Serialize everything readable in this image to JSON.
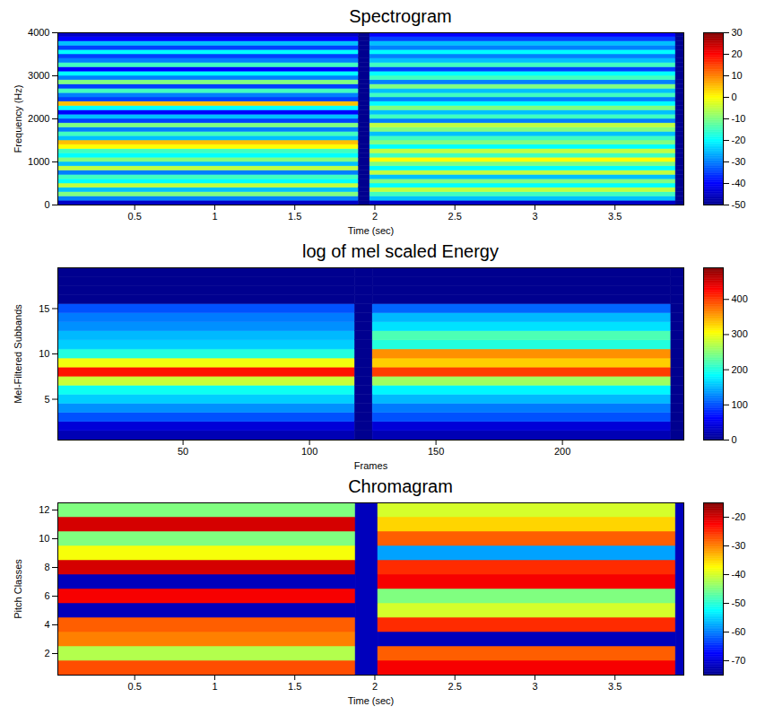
{
  "chart_data": [
    {
      "type": "heatmap",
      "title": "Spectrogram",
      "xlabel": "Time (sec)",
      "ylabel": "Frequency (Hz)",
      "xlim": [
        0.02,
        3.93
      ],
      "xticks": [
        0.5,
        1,
        1.5,
        2,
        2.5,
        3,
        3.5
      ],
      "ylim": [
        0,
        4000
      ],
      "yticks": [
        0,
        1000,
        2000,
        3000,
        4000
      ],
      "xbins": [
        0.02,
        1.9,
        1.97,
        3.88,
        3.93
      ],
      "ybins": [
        0,
        100,
        200,
        300,
        400,
        500,
        600,
        700,
        800,
        900,
        1000,
        1100,
        1200,
        1300,
        1400,
        1500,
        1600,
        1700,
        1800,
        1900,
        2000,
        2100,
        2200,
        2300,
        2400,
        2500,
        2600,
        2700,
        2800,
        2900,
        3000,
        3100,
        3200,
        3300,
        3400,
        3500,
        3600,
        3700,
        3800,
        3900,
        4000
      ],
      "z": [
        [
          -45,
          -50,
          -45,
          -50
        ],
        [
          -30,
          -50,
          -25,
          -50
        ],
        [
          -10,
          -50,
          -15,
          -50
        ],
        [
          -25,
          -50,
          -5,
          -50
        ],
        [
          -5,
          -50,
          -20,
          -50
        ],
        [
          -20,
          -50,
          -10,
          -50
        ],
        [
          -15,
          -50,
          -25,
          -50
        ],
        [
          -30,
          -50,
          -5,
          -50
        ],
        [
          -5,
          -50,
          -20,
          -50
        ],
        [
          -25,
          -50,
          -10,
          -50
        ],
        [
          -10,
          -50,
          0,
          -50
        ],
        [
          -20,
          -50,
          -15,
          -50
        ],
        [
          -15,
          -50,
          -5,
          -50
        ],
        [
          0,
          -50,
          -20,
          -50
        ],
        [
          5,
          -50,
          -10,
          -50
        ],
        [
          -25,
          -50,
          -15,
          -50
        ],
        [
          -15,
          -50,
          -25,
          -50
        ],
        [
          -30,
          -50,
          -10,
          -50
        ],
        [
          -10,
          -50,
          -5,
          -50
        ],
        [
          -35,
          -50,
          -30,
          -50
        ],
        [
          -25,
          -50,
          -15,
          -50
        ],
        [
          -40,
          -50,
          -25,
          -50
        ],
        [
          -20,
          -50,
          -10,
          -50
        ],
        [
          5,
          -50,
          -20,
          -50
        ],
        [
          -35,
          -50,
          -30,
          -50
        ],
        [
          -30,
          -50,
          -15,
          -50
        ],
        [
          -15,
          -50,
          -25,
          -50
        ],
        [
          -35,
          -50,
          -10,
          -50
        ],
        [
          -10,
          -50,
          -30,
          -50
        ],
        [
          -30,
          -50,
          -15,
          -50
        ],
        [
          -20,
          -50,
          -20,
          -50
        ],
        [
          -40,
          -50,
          -35,
          -50
        ],
        [
          -15,
          -50,
          -15,
          -50
        ],
        [
          -30,
          -50,
          -25,
          -50
        ],
        [
          -35,
          -50,
          -30,
          -50
        ],
        [
          -20,
          -50,
          -20,
          -50
        ],
        [
          -35,
          -50,
          -30,
          -50
        ],
        [
          -25,
          -50,
          -25,
          -50
        ],
        [
          -40,
          -50,
          -35,
          -50
        ],
        [
          -45,
          -50,
          -40,
          -50
        ]
      ],
      "zlim": [
        -50,
        30
      ],
      "zticks": [
        -50,
        -40,
        -30,
        -20,
        -10,
        0,
        10,
        20,
        30
      ]
    },
    {
      "type": "heatmap",
      "title": "log of mel scaled Energy",
      "xlabel": "Frames",
      "ylabel": "Mel-Filtered Subbands",
      "xlim": [
        0.5,
        248
      ],
      "xticks": [
        50,
        100,
        150,
        200
      ],
      "ylim": [
        0.5,
        19.5
      ],
      "yticks": [
        5,
        10,
        15
      ],
      "xbins": [
        0.5,
        118,
        125,
        243,
        248
      ],
      "ybins": [
        0.5,
        1.5,
        2.5,
        3.5,
        4.5,
        5.5,
        6.5,
        7.5,
        8.5,
        9.5,
        10.5,
        11.5,
        12.5,
        13.5,
        14.5,
        15.5,
        16.5,
        17.5,
        18.5,
        19.5
      ],
      "z": [
        [
          20,
          0,
          20,
          0
        ],
        [
          40,
          0,
          40,
          0
        ],
        [
          100,
          0,
          100,
          0
        ],
        [
          130,
          0,
          120,
          0
        ],
        [
          160,
          0,
          150,
          0
        ],
        [
          190,
          0,
          180,
          0
        ],
        [
          280,
          0,
          260,
          0
        ],
        [
          420,
          0,
          400,
          0
        ],
        [
          300,
          0,
          330,
          0
        ],
        [
          200,
          0,
          360,
          0
        ],
        [
          160,
          0,
          200,
          0
        ],
        [
          150,
          0,
          220,
          0
        ],
        [
          130,
          0,
          170,
          0
        ],
        [
          120,
          0,
          150,
          0
        ],
        [
          100,
          0,
          110,
          0
        ],
        [
          0,
          0,
          0,
          0
        ],
        [
          0,
          0,
          0,
          0
        ],
        [
          0,
          0,
          0,
          0
        ],
        [
          0,
          0,
          0,
          0
        ]
      ],
      "zlim": [
        0,
        490
      ],
      "zticks": [
        0,
        100,
        200,
        300,
        400
      ]
    },
    {
      "type": "heatmap",
      "title": "Chromagram",
      "xlabel": "Time (sec)",
      "ylabel": "Pitch Classes",
      "xlim": [
        0.02,
        3.93
      ],
      "xticks": [
        0.5,
        1,
        1.5,
        2,
        2.5,
        3,
        3.5
      ],
      "ylim": [
        0.5,
        12.5
      ],
      "yticks": [
        2,
        4,
        6,
        8,
        10,
        12
      ],
      "xbins": [
        0.02,
        1.88,
        2.02,
        3.88,
        3.93
      ],
      "ybins": [
        0.5,
        1.5,
        2.5,
        3.5,
        4.5,
        5.5,
        6.5,
        7.5,
        8.5,
        9.5,
        10.5,
        11.5,
        12.5
      ],
      "z": [
        [
          -27,
          -72,
          -22,
          -72
        ],
        [
          -42,
          -72,
          -28,
          -72
        ],
        [
          -30,
          -72,
          -72,
          -72
        ],
        [
          -28,
          -72,
          -25,
          -72
        ],
        [
          -72,
          -72,
          -40,
          -72
        ],
        [
          -22,
          -72,
          -45,
          -72
        ],
        [
          -72,
          -72,
          -22,
          -72
        ],
        [
          -20,
          -72,
          -25,
          -72
        ],
        [
          -38,
          -72,
          -58,
          -72
        ],
        [
          -45,
          -72,
          -28,
          -72
        ],
        [
          -20,
          -72,
          -35,
          -72
        ],
        [
          -45,
          -72,
          -40,
          -72
        ]
      ],
      "zlim": [
        -75,
        -15
      ],
      "zticks": [
        -70,
        -60,
        -50,
        -40,
        -30,
        -20
      ]
    }
  ]
}
